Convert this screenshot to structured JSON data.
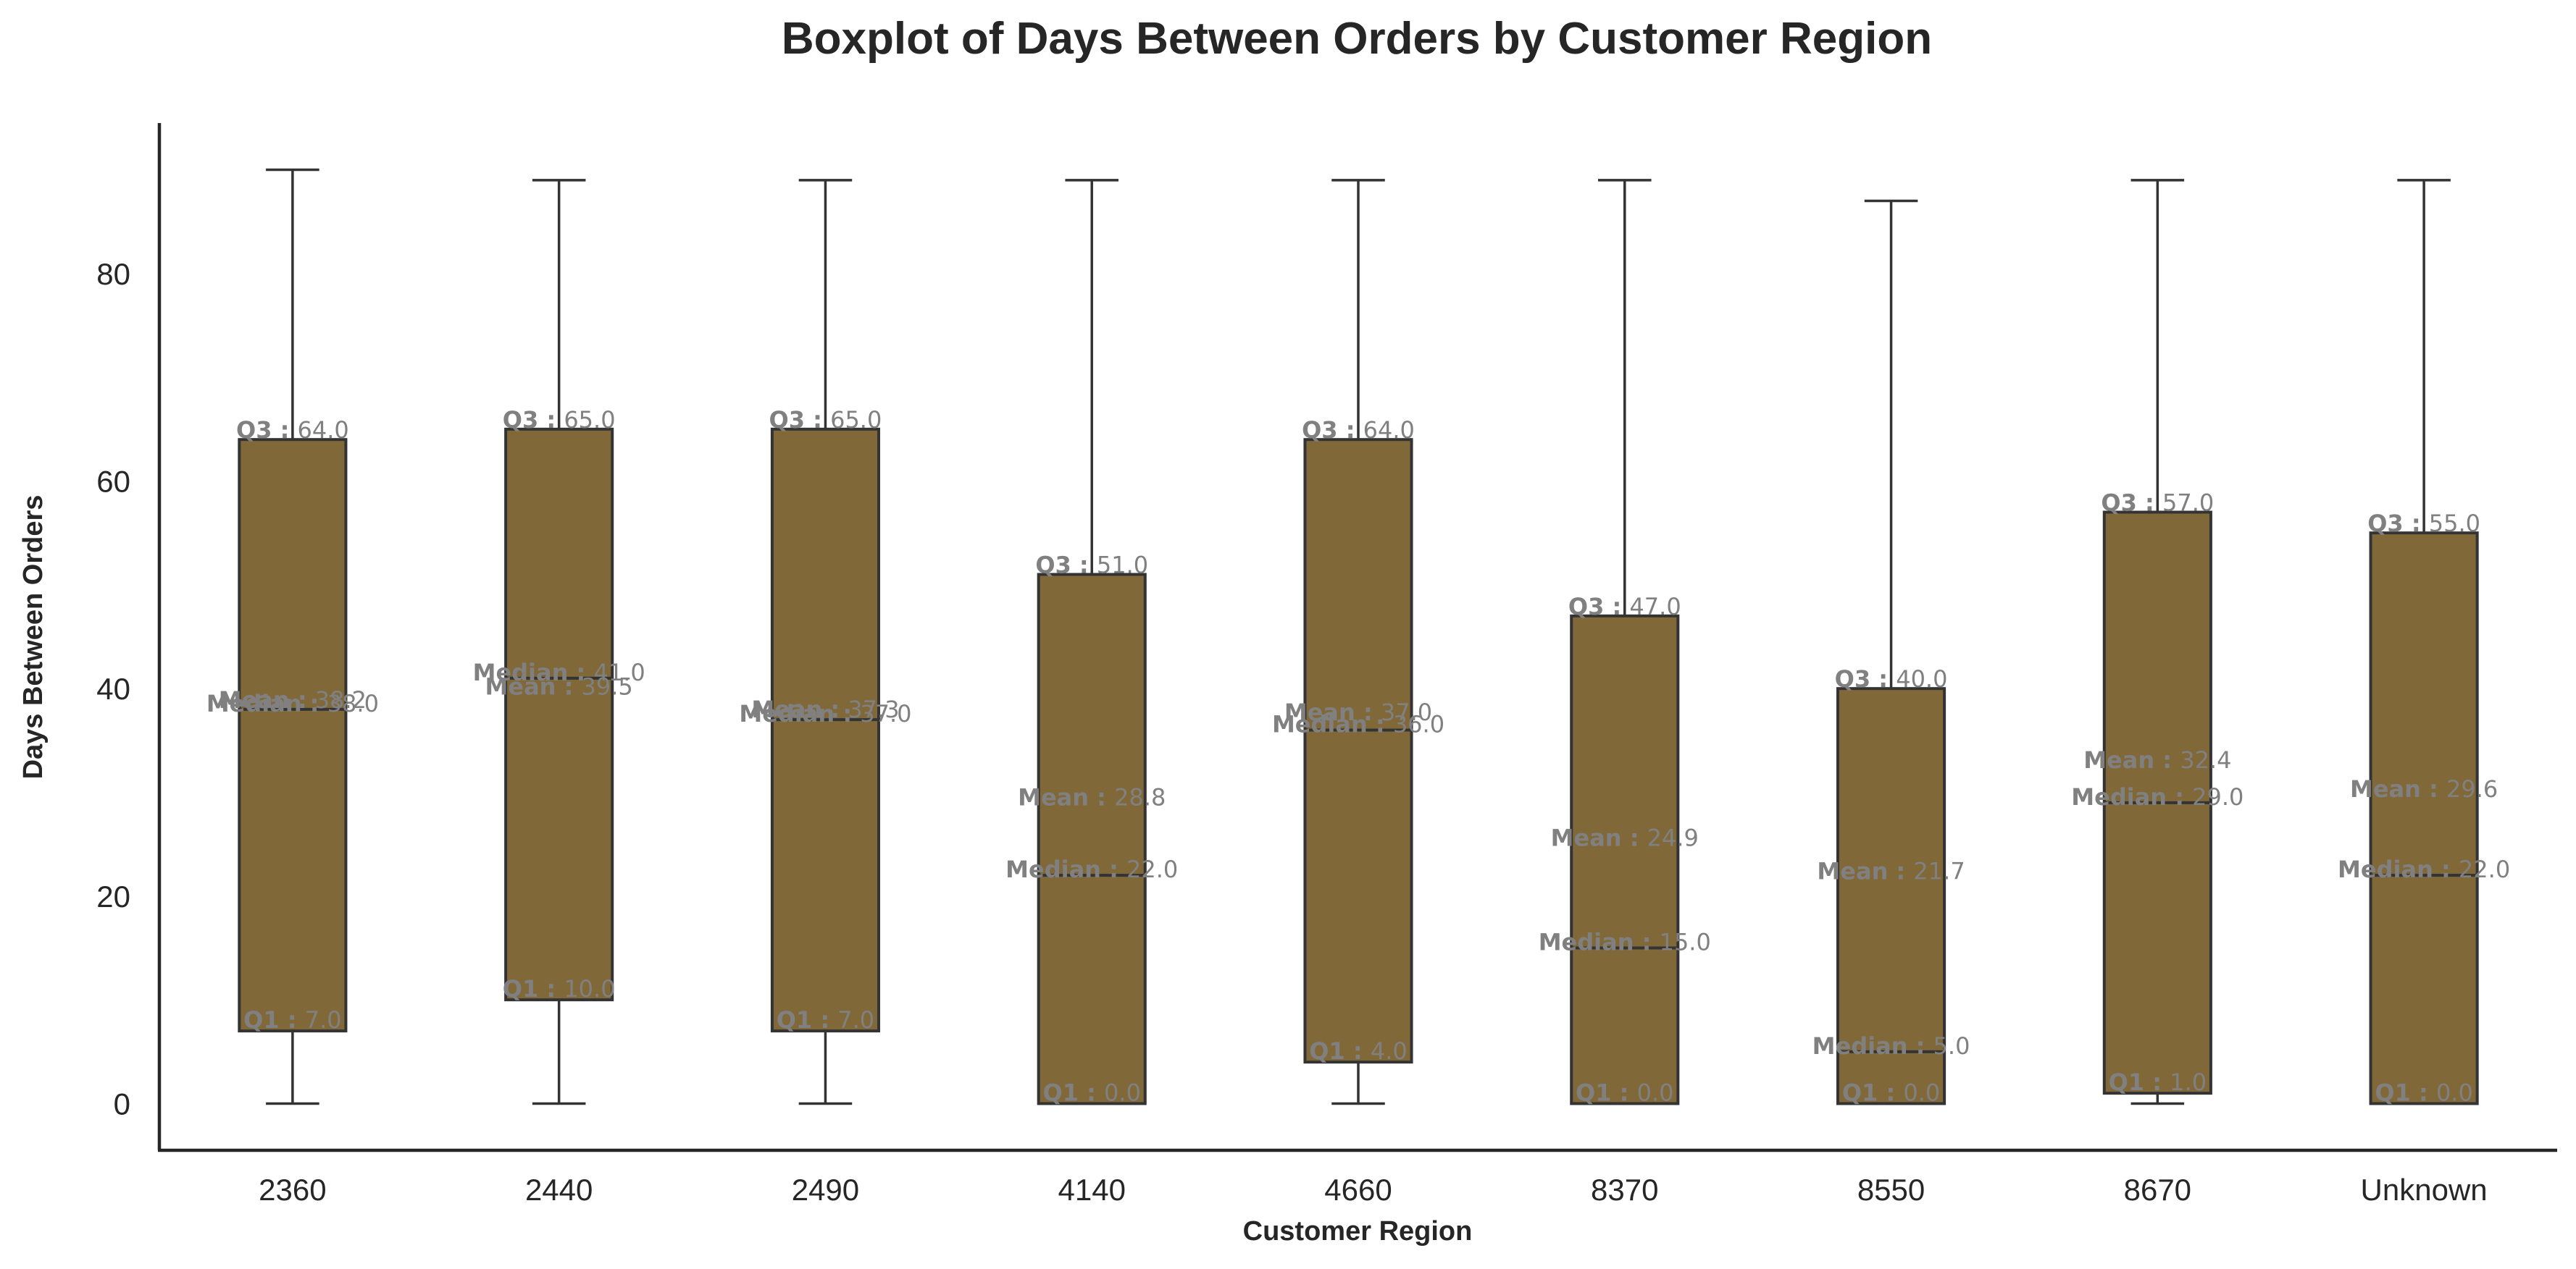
{
  "chart_data": {
    "type": "boxplot",
    "title": "Boxplot of Days Between Orders by Customer Region",
    "xlabel": "Customer Region",
    "ylabel": "Days Between Orders",
    "ylim": [
      -4.5,
      94.5
    ],
    "yticks": [
      0,
      20,
      40,
      60,
      80
    ],
    "box_color": "#806839",
    "label_color": "#808080",
    "stat_labels": {
      "q1": "Q1 :",
      "median": "Median :",
      "mean": "Mean :",
      "q3": "Q3 :"
    },
    "categories": [
      "2360",
      "2440",
      "2490",
      "4140",
      "4660",
      "8370",
      "8550",
      "8670",
      "Unknown"
    ],
    "boxes": [
      {
        "whislo": 0,
        "q1": 7.0,
        "med": 38.0,
        "mean": 38.2,
        "q3": 64.0,
        "whishi": 90,
        "q1_label": "7.0",
        "med_label": "38.0",
        "mean_label": "38.2",
        "q3_label": "64.0"
      },
      {
        "whislo": 0,
        "q1": 10.0,
        "med": 41.0,
        "mean": 39.5,
        "q3": 65.0,
        "whishi": 89,
        "q1_label": "10.0",
        "med_label": "41.0",
        "mean_label": "39.5",
        "q3_label": "65.0"
      },
      {
        "whislo": 0,
        "q1": 7.0,
        "med": 37.0,
        "mean": 37.3,
        "q3": 65.0,
        "whishi": 89,
        "q1_label": "7.0",
        "med_label": "37.0",
        "mean_label": "37.3",
        "q3_label": "65.0"
      },
      {
        "whislo": 0,
        "q1": 0.0,
        "med": 22.0,
        "mean": 28.8,
        "q3": 51.0,
        "whishi": 89,
        "q1_label": "0.0",
        "med_label": "22.0",
        "mean_label": "28.8",
        "q3_label": "51.0"
      },
      {
        "whislo": 0,
        "q1": 4.0,
        "med": 36.0,
        "mean": 37.0,
        "q3": 64.0,
        "whishi": 89,
        "q1_label": "4.0",
        "med_label": "36.0",
        "mean_label": "37.0",
        "q3_label": "64.0"
      },
      {
        "whislo": 0,
        "q1": 0.0,
        "med": 15.0,
        "mean": 24.9,
        "q3": 47.0,
        "whishi": 89,
        "q1_label": "0.0",
        "med_label": "15.0",
        "mean_label": "24.9",
        "q3_label": "47.0"
      },
      {
        "whislo": 0,
        "q1": 0.0,
        "med": 5.0,
        "mean": 21.7,
        "q3": 40.0,
        "whishi": 87,
        "q1_label": "0.0",
        "med_label": "5.0",
        "mean_label": "21.7",
        "q3_label": "40.0"
      },
      {
        "whislo": 0,
        "q1": 1.0,
        "med": 29.0,
        "mean": 32.4,
        "q3": 57.0,
        "whishi": 89,
        "q1_label": "1.0",
        "med_label": "29.0",
        "mean_label": "32.4",
        "q3_label": "57.0"
      },
      {
        "whislo": 0,
        "q1": 0.0,
        "med": 22.0,
        "mean": 29.6,
        "q3": 55.0,
        "whishi": 89,
        "q1_label": "0.0",
        "med_label": "22.0",
        "mean_label": "29.6",
        "q3_label": "55.0"
      }
    ]
  }
}
